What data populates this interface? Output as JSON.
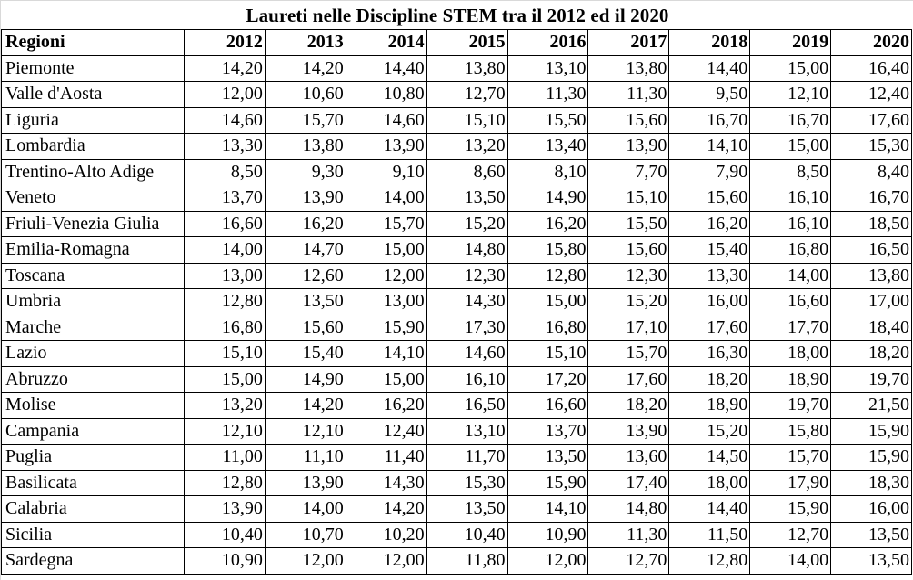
{
  "title": "Laureti nelle Discipline STEM tra il 2012 ed il 2020",
  "header": {
    "region_label": "Regioni",
    "years": [
      "2012",
      "2013",
      "2014",
      "2015",
      "2016",
      "2017",
      "2018",
      "2019",
      "2020"
    ]
  },
  "rows": [
    {
      "region": "Piemonte",
      "values": [
        "14,20",
        "14,20",
        "14,40",
        "13,80",
        "13,10",
        "13,80",
        "14,40",
        "15,00",
        "16,40"
      ]
    },
    {
      "region": "Valle d'Aosta",
      "values": [
        "12,00",
        "10,60",
        "10,80",
        "12,70",
        "11,30",
        "11,30",
        "9,50",
        "12,10",
        "12,40"
      ]
    },
    {
      "region": "Liguria",
      "values": [
        "14,60",
        "15,70",
        "14,60",
        "15,10",
        "15,50",
        "15,60",
        "16,70",
        "16,70",
        "17,60"
      ]
    },
    {
      "region": "Lombardia",
      "values": [
        "13,30",
        "13,80",
        "13,90",
        "13,20",
        "13,40",
        "13,90",
        "14,10",
        "15,00",
        "15,30"
      ]
    },
    {
      "region": "Trentino-Alto Adige",
      "values": [
        "8,50",
        "9,30",
        "9,10",
        "8,60",
        "8,10",
        "7,70",
        "7,90",
        "8,50",
        "8,40"
      ]
    },
    {
      "region": "Veneto",
      "values": [
        "13,70",
        "13,90",
        "14,00",
        "13,50",
        "14,90",
        "15,10",
        "15,60",
        "16,10",
        "16,70"
      ]
    },
    {
      "region": "Friuli-Venezia Giulia",
      "values": [
        "16,60",
        "16,20",
        "15,70",
        "15,20",
        "16,20",
        "15,50",
        "16,20",
        "16,10",
        "18,50"
      ]
    },
    {
      "region": "Emilia-Romagna",
      "values": [
        "14,00",
        "14,70",
        "15,00",
        "14,80",
        "15,80",
        "15,60",
        "15,40",
        "16,80",
        "16,50"
      ]
    },
    {
      "region": "Toscana",
      "values": [
        "13,00",
        "12,60",
        "12,00",
        "12,30",
        "12,80",
        "12,30",
        "13,30",
        "14,00",
        "13,80"
      ]
    },
    {
      "region": "Umbria",
      "values": [
        "12,80",
        "13,50",
        "13,00",
        "14,30",
        "15,00",
        "15,20",
        "16,00",
        "16,60",
        "17,00"
      ]
    },
    {
      "region": "Marche",
      "values": [
        "16,80",
        "15,60",
        "15,90",
        "17,30",
        "16,80",
        "17,10",
        "17,60",
        "17,70",
        "18,40"
      ]
    },
    {
      "region": "Lazio",
      "values": [
        "15,10",
        "15,40",
        "14,10",
        "14,60",
        "15,10",
        "15,70",
        "16,30",
        "18,00",
        "18,20"
      ]
    },
    {
      "region": "Abruzzo",
      "values": [
        "15,00",
        "14,90",
        "15,00",
        "16,10",
        "17,20",
        "17,60",
        "18,20",
        "18,90",
        "19,70"
      ]
    },
    {
      "region": "Molise",
      "values": [
        "13,20",
        "14,20",
        "16,20",
        "16,50",
        "16,60",
        "18,20",
        "18,90",
        "19,70",
        "21,50"
      ]
    },
    {
      "region": "Campania",
      "values": [
        "12,10",
        "12,10",
        "12,40",
        "13,10",
        "13,70",
        "13,90",
        "15,20",
        "15,80",
        "15,90"
      ]
    },
    {
      "region": "Puglia",
      "values": [
        "11,00",
        "11,10",
        "11,40",
        "11,70",
        "13,50",
        "13,60",
        "14,50",
        "15,70",
        "15,90"
      ]
    },
    {
      "region": "Basilicata",
      "values": [
        "12,80",
        "13,90",
        "14,30",
        "15,30",
        "15,90",
        "17,40",
        "18,00",
        "17,90",
        "18,30"
      ]
    },
    {
      "region": "Calabria",
      "values": [
        "13,90",
        "14,00",
        "14,20",
        "13,50",
        "14,10",
        "14,80",
        "14,40",
        "15,90",
        "16,00"
      ]
    },
    {
      "region": "Sicilia",
      "values": [
        "10,40",
        "10,70",
        "10,20",
        "10,40",
        "10,90",
        "11,30",
        "11,50",
        "12,70",
        "13,50"
      ]
    },
    {
      "region": "Sardegna",
      "values": [
        "10,90",
        "12,00",
        "12,00",
        "11,80",
        "12,00",
        "12,70",
        "12,80",
        "14,00",
        "13,50"
      ]
    }
  ]
}
